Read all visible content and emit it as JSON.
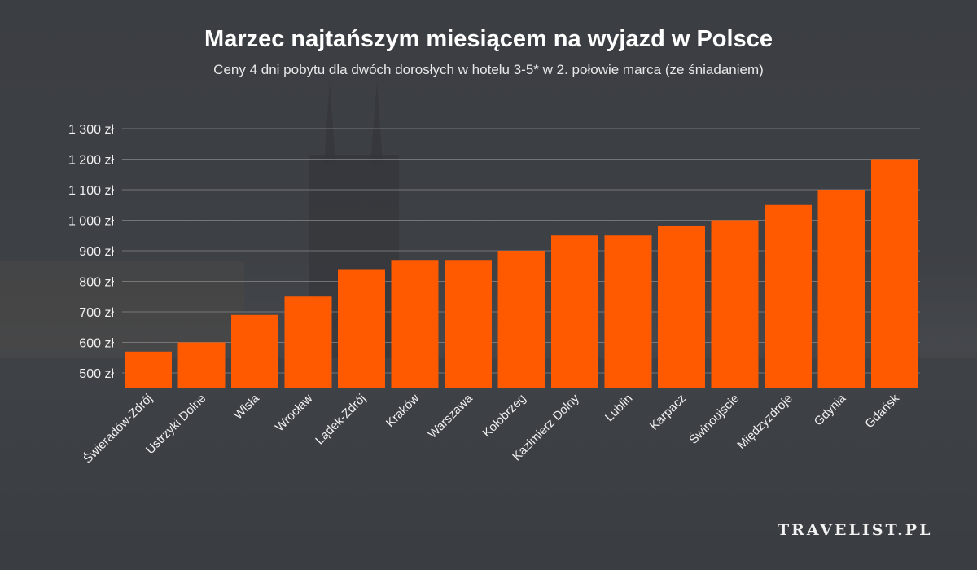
{
  "chart_data": {
    "type": "bar",
    "title": "Marzec najtańszym miesiącem na wyjazd w Polsce",
    "subtitle": "Ceny 4 dni pobytu dla dwóch dorosłych w hotelu 3-5* w 2. połowie marca (ze śniadaniem)",
    "xlabel": "",
    "ylabel": "",
    "ylim": [
      452,
      1300
    ],
    "yticks": [
      500,
      600,
      700,
      800,
      900,
      1000,
      1100,
      1200,
      1300
    ],
    "ytick_labels": [
      "500 zł",
      "600 zł",
      "700 zł",
      "800 zł",
      "900 zł",
      "1 000 zł",
      "1 100 zł",
      "1 200 zł",
      "1 300 zł"
    ],
    "grid": true,
    "categories": [
      "Świeradów-Zdrój",
      "Ustrzyki Dolne",
      "Wisła",
      "Wrocław",
      "Lądek-Zdrój",
      "Kraków",
      "Warszawa",
      "Kołobrzeg",
      "Kazimierz Dolny",
      "Lublin",
      "Karpacz",
      "Świnoujście",
      "Międzyzdroje",
      "Gdynia",
      "Gdańsk"
    ],
    "values": [
      570,
      600,
      690,
      750,
      840,
      870,
      870,
      900,
      950,
      950,
      980,
      1000,
      1050,
      1100,
      1200
    ],
    "unit": "zł",
    "bar_color": "#ff5a00"
  },
  "brand": {
    "logo": "TRAVELIST.PL"
  }
}
